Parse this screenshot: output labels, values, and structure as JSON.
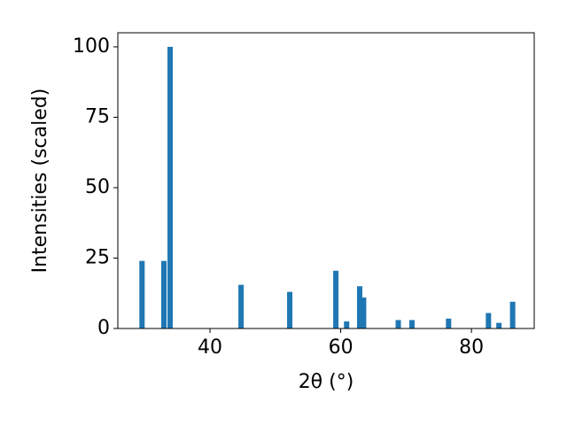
{
  "chart_data": {
    "type": "bar",
    "x_label": "2θ (°)",
    "y_label": "Intensities (scaled)",
    "x": [
      29.6,
      32.95,
      33.9,
      44.75,
      52.2,
      59.25,
      60.9,
      62.9,
      63.5,
      68.8,
      70.9,
      76.5,
      82.6,
      84.2,
      86.3
    ],
    "values": [
      24,
      24,
      100,
      15.5,
      13,
      20.5,
      2.5,
      15,
      11,
      3,
      3,
      3.5,
      5.5,
      2,
      9.5
    ],
    "color": "#1f77b4",
    "xlim": [
      25.9,
      89.6
    ],
    "xticks": [
      40,
      60,
      80
    ],
    "ylim": [
      0,
      105
    ],
    "yticks": [
      0,
      25,
      50,
      75,
      100
    ],
    "grid": false
  }
}
